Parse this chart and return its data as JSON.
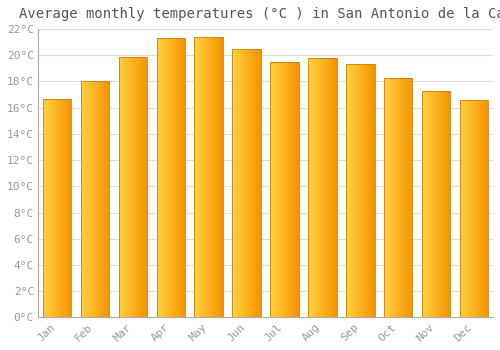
{
  "title": "Average monthly temperatures (°C ) in San Antonio de la Cal",
  "months": [
    "Jan",
    "Feb",
    "Mar",
    "Apr",
    "May",
    "Jun",
    "Jul",
    "Aug",
    "Sep",
    "Oct",
    "Nov",
    "Dec"
  ],
  "temperatures": [
    16.7,
    18.0,
    19.9,
    21.3,
    21.4,
    20.5,
    19.5,
    19.8,
    19.3,
    18.3,
    17.3,
    16.6
  ],
  "bar_color_left": "#FFD040",
  "bar_color_right": "#F59400",
  "bar_edge_color": "#C8820A",
  "ylim": [
    0,
    22
  ],
  "yticks": [
    0,
    2,
    4,
    6,
    8,
    10,
    12,
    14,
    16,
    18,
    20,
    22
  ],
  "ytick_labels": [
    "0°C",
    "2°C",
    "4°C",
    "6°C",
    "8°C",
    "10°C",
    "12°C",
    "14°C",
    "16°C",
    "18°C",
    "20°C",
    "22°C"
  ],
  "background_color": "#FFFFFF",
  "plot_bg_color": "#FFFFFF",
  "grid_color": "#DDDDDD",
  "title_fontsize": 10,
  "tick_fontsize": 8,
  "font_color": "#999999",
  "title_color": "#555555",
  "bar_width": 0.75,
  "n_gradient_steps": 40
}
